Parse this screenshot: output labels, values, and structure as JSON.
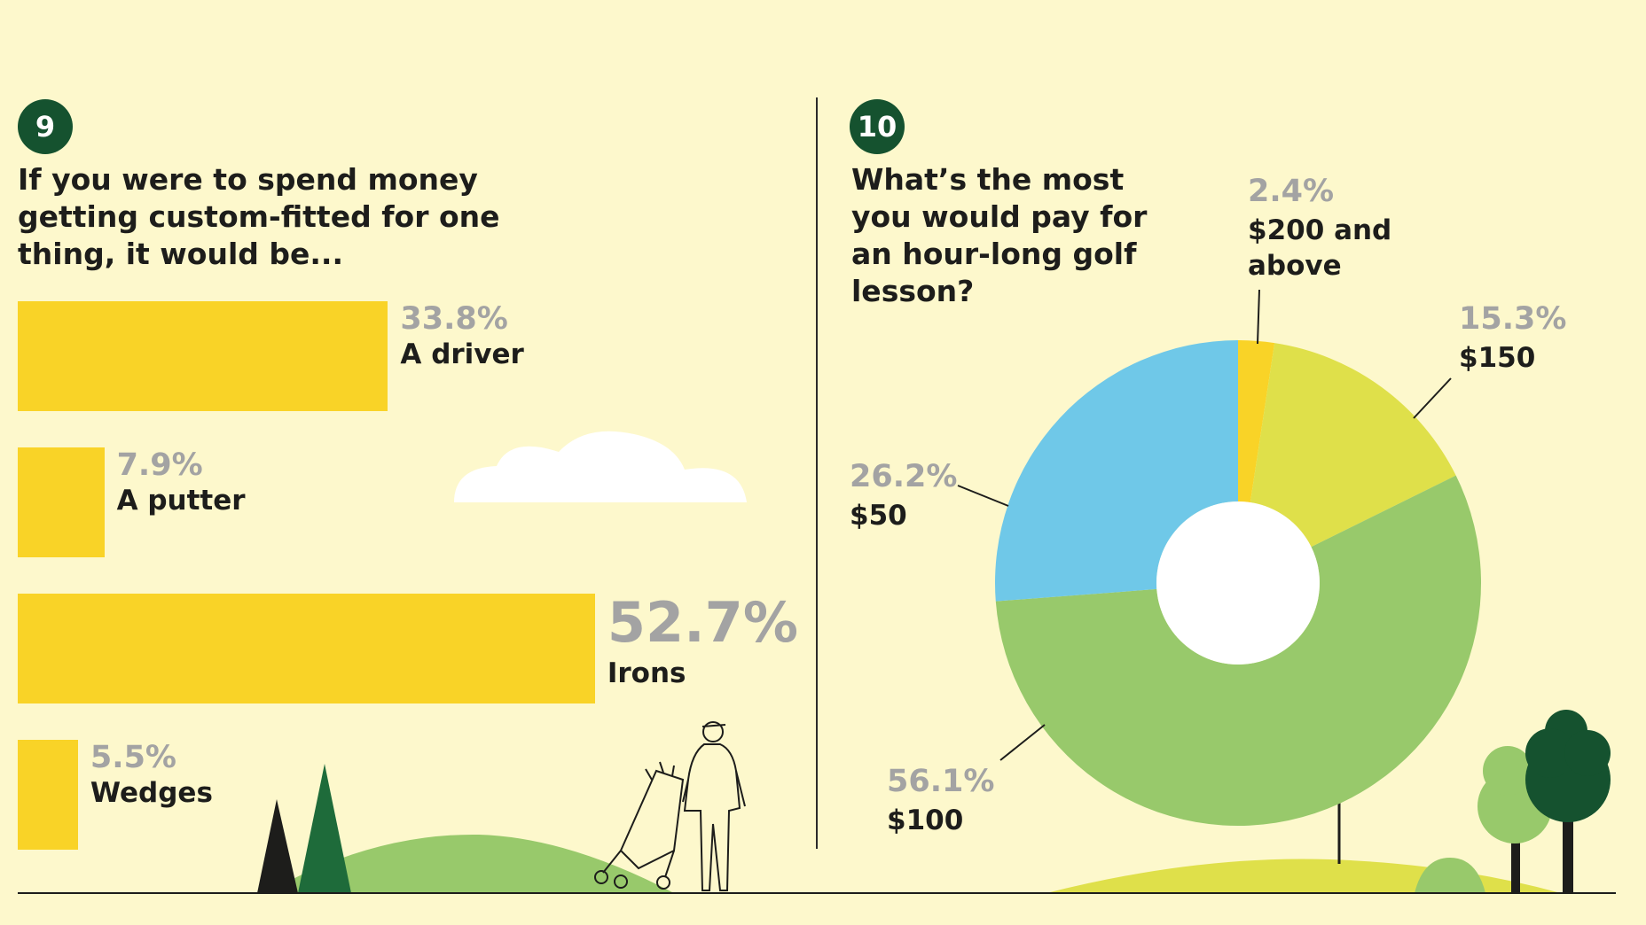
{
  "panel9": {
    "number": "9",
    "question": "If you were to spend money getting custom-fitted for one thing, it would be..."
  },
  "panel10": {
    "number": "10",
    "question": "What’s the most you would pay for an hour-long golf lesson?"
  },
  "chart_data": [
    {
      "type": "bar",
      "orientation": "horizontal",
      "categories": [
        "A driver",
        "A putter",
        "Irons",
        "Wedges"
      ],
      "values": [
        33.8,
        7.9,
        52.7,
        5.5
      ],
      "value_labels": [
        "33.8%",
        "7.9%",
        "52.7%",
        "5.5%"
      ],
      "unit": "%"
    },
    {
      "type": "pie",
      "variant": "donut",
      "categories": [
        "$200 and above",
        "$150",
        "$100",
        "$50"
      ],
      "values": [
        2.4,
        15.3,
        56.1,
        26.2
      ],
      "value_labels": [
        "2.4%",
        "15.3%",
        "56.1%",
        "26.2%"
      ],
      "colors": [
        "#f9d327",
        "#dfe04a",
        "#98c96b",
        "#6fc8e8"
      ],
      "unit": "%"
    }
  ],
  "colors": {
    "background": "#fdf8cc",
    "bar": "#f9d327",
    "badge": "#15522f",
    "percent_text": "#a3a3a3"
  }
}
